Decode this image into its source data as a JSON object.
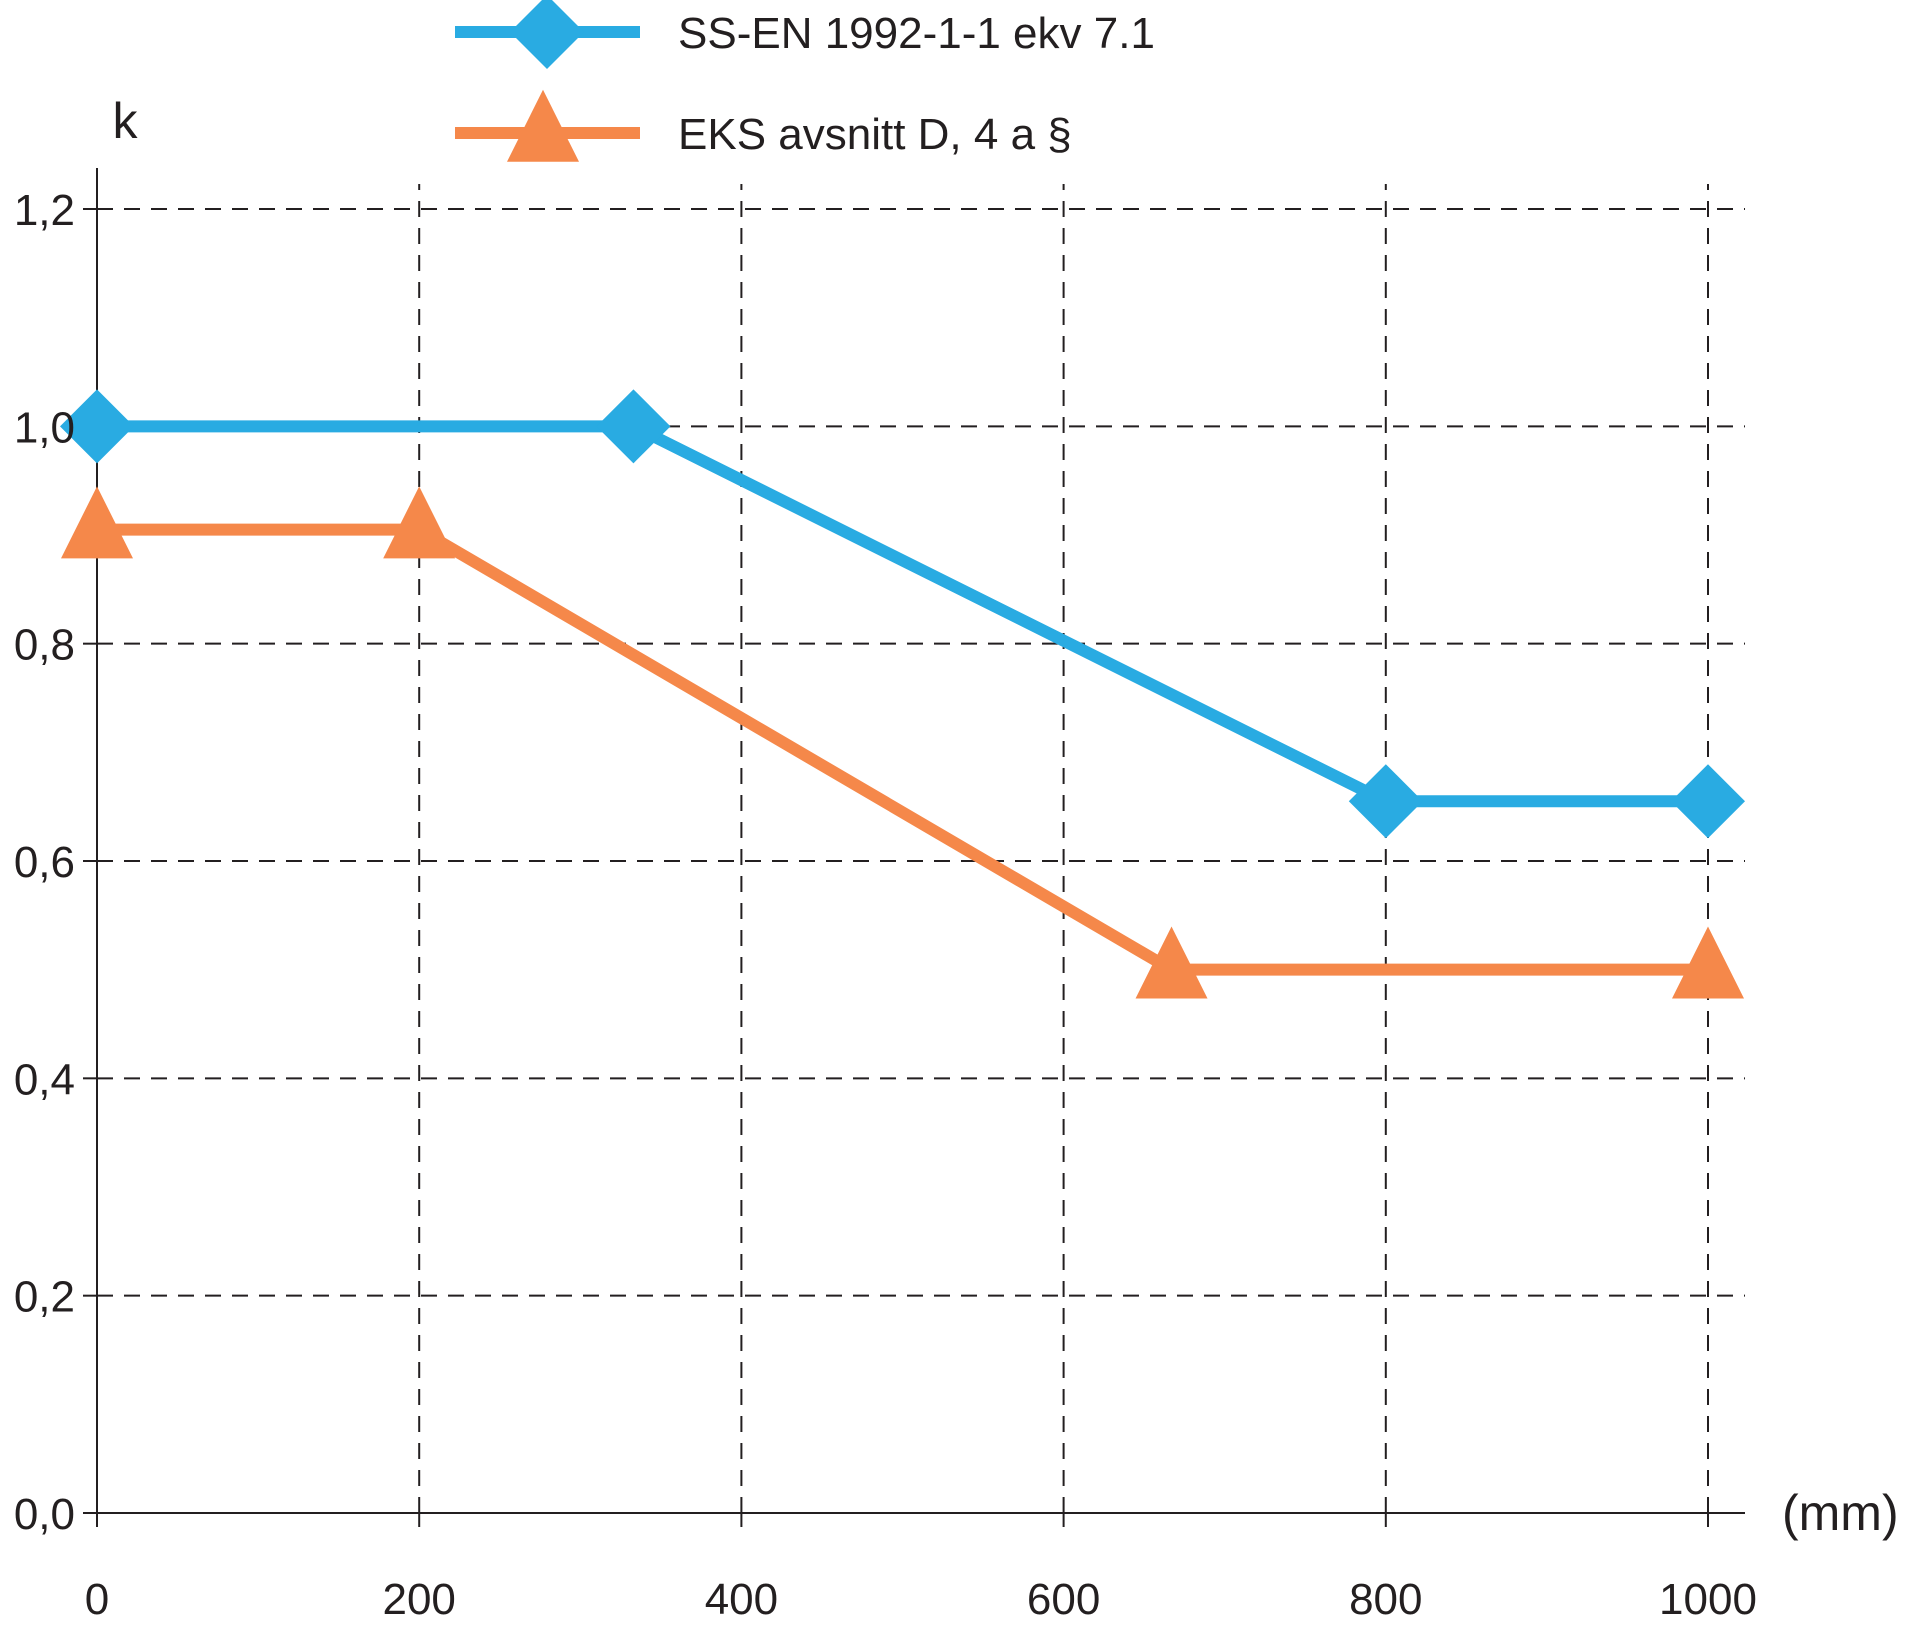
{
  "chart_data": {
    "type": "line",
    "title": "",
    "ylabel": "k",
    "xlabel": "(mm)",
    "xlim": [
      0,
      1000
    ],
    "ylim": [
      0,
      1.2
    ],
    "grid": true,
    "legend_position": "top-center",
    "x_ticks": [
      {
        "value": 0,
        "label": "0"
      },
      {
        "value": 200,
        "label": "200"
      },
      {
        "value": 400,
        "label": "400"
      },
      {
        "value": 600,
        "label": "600"
      },
      {
        "value": 800,
        "label": "800"
      },
      {
        "value": 1000,
        "label": "1000"
      }
    ],
    "y_ticks": [
      {
        "value": 0.0,
        "label": "0,0"
      },
      {
        "value": 0.2,
        "label": "0,2"
      },
      {
        "value": 0.4,
        "label": "0,4"
      },
      {
        "value": 0.6,
        "label": "0,6"
      },
      {
        "value": 0.8,
        "label": "0,8"
      },
      {
        "value": 1.0,
        "label": "1,0"
      },
      {
        "value": 1.2,
        "label": "1,2"
      }
    ],
    "series": [
      {
        "name": "SS-EN 1992-1-1 ekv 7.1",
        "color": "#29abe2",
        "marker": "diamond",
        "x": [
          0,
          333,
          800,
          1000
        ],
        "y": [
          1.0,
          1.0,
          0.655,
          0.655
        ]
      },
      {
        "name": "EKS avsnitt D, 4 a §",
        "color": "#f5884a",
        "marker": "triangle",
        "x": [
          0,
          200,
          667,
          1000
        ],
        "y": [
          0.905,
          0.905,
          0.5,
          0.5
        ]
      }
    ]
  },
  "colors": {
    "axis": "#231f20",
    "grid": "#231f20",
    "background": "#ffffff"
  }
}
